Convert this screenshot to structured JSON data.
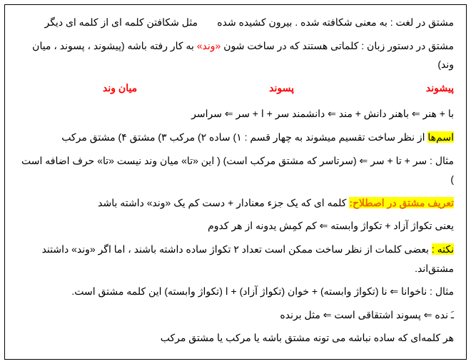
{
  "p1_a": "مشتق در لغت : به معنی شکافته شده . بیرون کشیده شده",
  "p1_b": "مثل شکافتن کلمه ای از کلمه ای دیگر",
  "p2_a": "مشتق در دستور زبان : کلماتی هستند که در ساخت شون ",
  "p2_b": "«وند»",
  "p2_c": " به کار رفته باشه (پیشوند ، پسوند ، میان وند)",
  "col1": "پیشوند",
  "col2": "پسوند",
  "col3": "میان وند",
  "p3": "با + هنر ⇐ باهنر        دانش + مند ⇐ دانشمند        سر + ا + سر ⇐ سراسر",
  "p4_hl": "اسم‌ها",
  "p4_a": " از نظر ساخت تقسیم میشوند به چهار قسم : ۱) ساده ۲) مرکب ۳) مشتق ۴) مشتق مرکب",
  "p5": "مثال : سر + تا + سر ⇐ (سرتاسر که مشتق مرکب است) ( این «تا» میان وند نیست «تا» حرف اضافه است )",
  "p6_hl": "تعریف مشتق در اصطلاح:",
  "p6_a": " کلمه ای که یک جزء معنادار + دست کم یک «وند» داشته باشد",
  "p7": "یعنی تکواژ آزاد + تکواژ وابسته ⇐ کم کمِش یدونه از هر کدوم",
  "p8_hl": "نکته :",
  "p8_a": " بعضی کلمات از نظر ساخت ممکن است تعداد ۲ تکواژ ساده داشته باشند ، اما اگر «وند» داشتند مشتق‌اند.",
  "p9": "مثال : ناخوانا ⇐ نا (تکواژ وابسته) + خوان (تکواژ آزاد) + ا (تکواژ وابسته) این کلمه مشتق است.",
  "p10": "ـَ نده ⇐ پسوند اشتقاقی است ⇐ مثل برنده",
  "p11": "هر کلمه‌ای که ساده نباشه می تونه مشتق باشه یا مرکب یا مشتق مرکب"
}
